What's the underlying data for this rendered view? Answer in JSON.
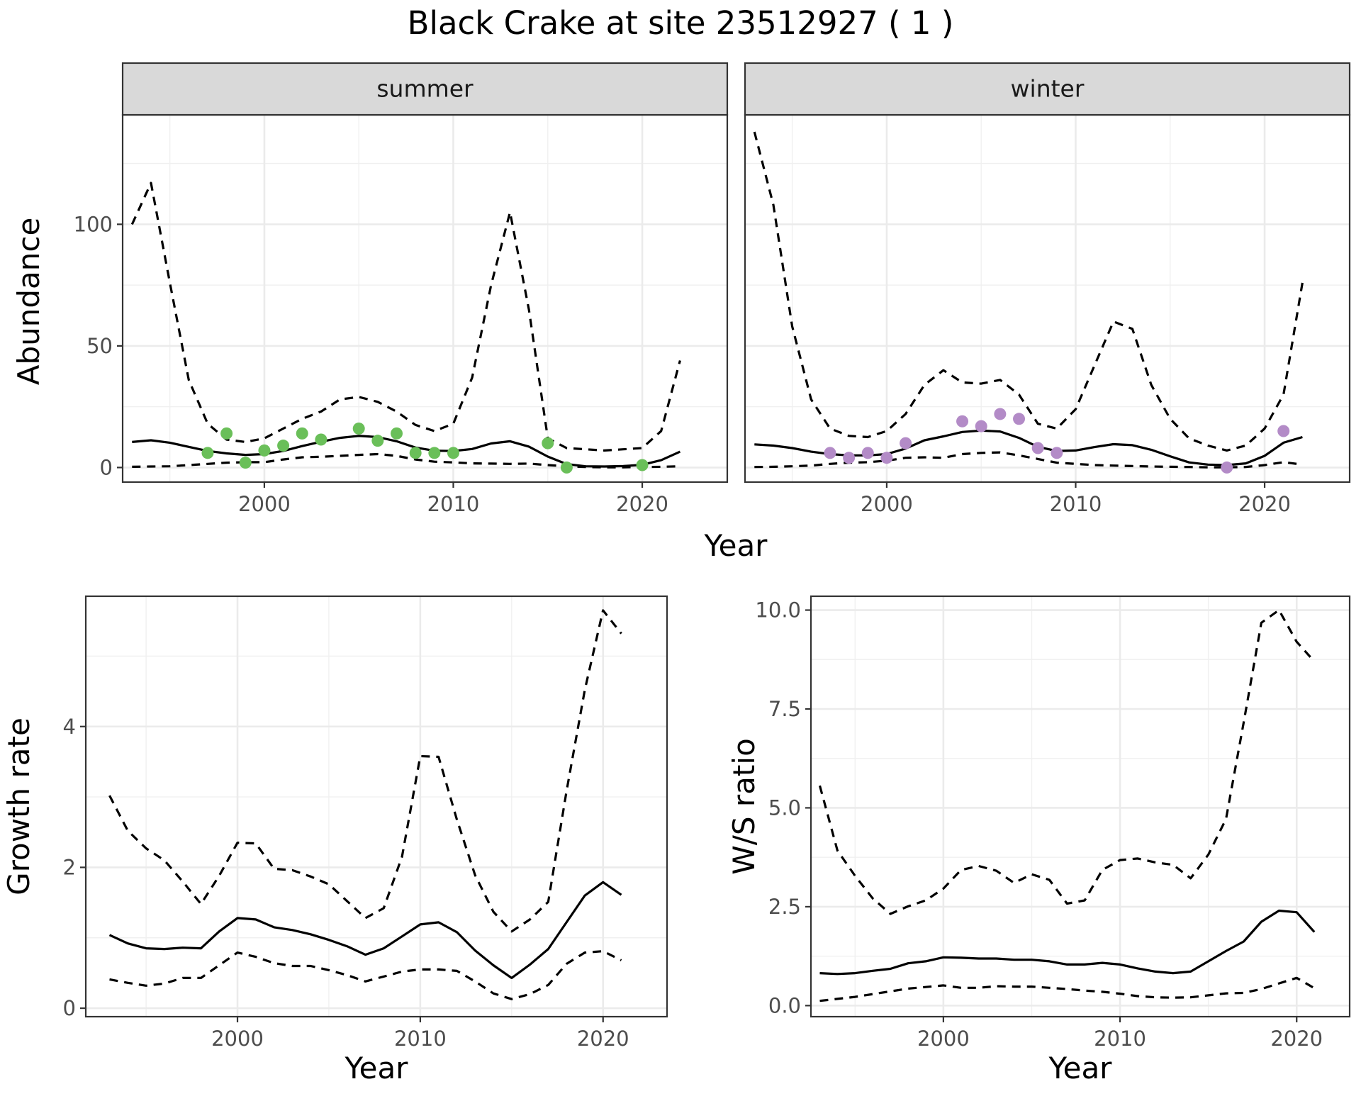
{
  "figure": {
    "title": "Black Crake at site 23512927 ( 1 )"
  },
  "chart_data": [
    {
      "type": "line",
      "facet": "summer",
      "xlabel": "Year",
      "ylabel": "Abundance",
      "xlim": [
        1992.5,
        2024.5
      ],
      "ylim": [
        -6,
        145
      ],
      "x_ticks": [
        2000,
        2010,
        2020
      ],
      "y_ticks": [
        0,
        50,
        100
      ],
      "grid": true,
      "points_color": "#6abf59",
      "x": [
        1993,
        1994,
        1995,
        1996,
        1997,
        1998,
        1999,
        2000,
        2001,
        2002,
        2003,
        2004,
        2005,
        2006,
        2007,
        2008,
        2009,
        2010,
        2011,
        2012,
        2013,
        2014,
        2015,
        2016,
        2017,
        2018,
        2019,
        2020,
        2021,
        2022
      ],
      "series": [
        {
          "style": "solid",
          "values": [
            10.5,
            11.2,
            10.2,
            8.5,
            6.8,
            5.8,
            5.2,
            5.5,
            6.8,
            8.8,
            10.6,
            12.2,
            13.0,
            12.5,
            10.8,
            8.2,
            6.9,
            6.8,
            7.6,
            9.9,
            10.8,
            8.6,
            4.5,
            1.4,
            0.5,
            0.4,
            0.6,
            1.1,
            3.0,
            6.5
          ]
        },
        {
          "style": "dashed",
          "values": [
            100,
            117,
            76,
            36,
            18,
            11.5,
            10.5,
            12,
            16,
            20,
            23,
            28,
            29,
            27,
            23,
            17.5,
            15,
            18,
            37,
            75,
            105,
            65,
            12,
            8,
            7.5,
            7,
            7.5,
            8,
            15,
            44
          ]
        },
        {
          "style": "dashed",
          "values": [
            0.3,
            0.4,
            0.5,
            1.0,
            1.5,
            2.0,
            2.2,
            2.2,
            3.3,
            4.2,
            4.4,
            4.8,
            5.2,
            5.5,
            4.8,
            3.3,
            2.4,
            2.1,
            1.7,
            1.6,
            1.5,
            1.6,
            1.0,
            0.5,
            0.2,
            0.1,
            0.1,
            0.2,
            0.3,
            0.5
          ]
        }
      ],
      "points": [
        {
          "x": 1997,
          "y": 6
        },
        {
          "x": 1998,
          "y": 14
        },
        {
          "x": 1999,
          "y": 2
        },
        {
          "x": 2000,
          "y": 7
        },
        {
          "x": 2001,
          "y": 9
        },
        {
          "x": 2002,
          "y": 14
        },
        {
          "x": 2003,
          "y": 11.5
        },
        {
          "x": 2005,
          "y": 16
        },
        {
          "x": 2006,
          "y": 11
        },
        {
          "x": 2007,
          "y": 14
        },
        {
          "x": 2008,
          "y": 6
        },
        {
          "x": 2009,
          "y": 6
        },
        {
          "x": 2010,
          "y": 6
        },
        {
          "x": 2015,
          "y": 10
        },
        {
          "x": 2016,
          "y": 0
        },
        {
          "x": 2020,
          "y": 1
        }
      ]
    },
    {
      "type": "line",
      "facet": "winter",
      "xlabel": "Year",
      "ylabel": "Abundance",
      "xlim": [
        1992.5,
        2024.5
      ],
      "ylim": [
        -6,
        145
      ],
      "x_ticks": [
        2000,
        2010,
        2020
      ],
      "y_ticks": [
        0,
        50,
        100
      ],
      "grid": true,
      "points_color": "#b38bc7",
      "x": [
        1993,
        1994,
        1995,
        1996,
        1997,
        1998,
        1999,
        2000,
        2001,
        2002,
        2003,
        2004,
        2005,
        2006,
        2007,
        2008,
        2009,
        2010,
        2011,
        2012,
        2013,
        2014,
        2015,
        2016,
        2017,
        2018,
        2019,
        2020,
        2021,
        2022
      ],
      "series": [
        {
          "style": "solid",
          "values": [
            9.5,
            9.0,
            8.0,
            6.5,
            5.5,
            5.0,
            5.0,
            5.5,
            7.8,
            11.2,
            12.8,
            14.6,
            15.2,
            14.8,
            12.2,
            8.5,
            6.8,
            7.0,
            8.4,
            9.6,
            9.2,
            7.3,
            4.6,
            2.1,
            1.2,
            1.0,
            1.7,
            4.8,
            10.2,
            12.5
          ]
        },
        {
          "style": "dashed",
          "values": [
            138,
            108,
            58,
            28,
            16,
            13,
            12.5,
            15,
            22,
            34,
            40,
            35,
            34.5,
            36,
            30,
            18,
            16,
            24,
            42,
            60,
            57,
            34,
            20,
            12,
            9,
            7,
            9,
            16,
            30,
            76
          ]
        },
        {
          "style": "dashed",
          "values": [
            0.2,
            0.3,
            0.5,
            0.8,
            1.5,
            2.0,
            2.2,
            2.8,
            4.0,
            4.2,
            4.0,
            5.5,
            6.0,
            6.2,
            5.0,
            3.5,
            2.0,
            1.5,
            1.0,
            0.8,
            0.6,
            0.4,
            0.3,
            0.2,
            0.1,
            0.1,
            0.2,
            1.0,
            2.2,
            1.2
          ]
        }
      ],
      "points": [
        {
          "x": 1997,
          "y": 6
        },
        {
          "x": 1998,
          "y": 4
        },
        {
          "x": 1999,
          "y": 6
        },
        {
          "x": 2000,
          "y": 4
        },
        {
          "x": 2001,
          "y": 10
        },
        {
          "x": 2004,
          "y": 19
        },
        {
          "x": 2005,
          "y": 17
        },
        {
          "x": 2006,
          "y": 22
        },
        {
          "x": 2007,
          "y": 20
        },
        {
          "x": 2008,
          "y": 8
        },
        {
          "x": 2009,
          "y": 6
        },
        {
          "x": 2018,
          "y": 0
        },
        {
          "x": 2021,
          "y": 15
        }
      ]
    },
    {
      "type": "line",
      "xlabel": "Year",
      "ylabel": "Growth rate",
      "xlim": [
        1991.7,
        2023.5
      ],
      "ylim": [
        -0.12,
        5.85
      ],
      "x_ticks": [
        2000,
        2010,
        2020
      ],
      "y_ticks": [
        0,
        2,
        4
      ],
      "grid": true,
      "x": [
        1993,
        1994,
        1995,
        1996,
        1997,
        1998,
        1999,
        2000,
        2001,
        2002,
        2003,
        2004,
        2005,
        2006,
        2007,
        2008,
        2009,
        2010,
        2011,
        2012,
        2013,
        2014,
        2015,
        2016,
        2017,
        2018,
        2019,
        2020,
        2021
      ],
      "series": [
        {
          "style": "solid",
          "values": [
            1.04,
            0.92,
            0.85,
            0.84,
            0.86,
            0.85,
            1.09,
            1.28,
            1.26,
            1.15,
            1.11,
            1.05,
            0.97,
            0.88,
            0.76,
            0.85,
            1.02,
            1.19,
            1.22,
            1.08,
            0.82,
            0.61,
            0.43,
            0.62,
            0.84,
            1.22,
            1.6,
            1.79,
            1.61
          ]
        },
        {
          "style": "dashed",
          "values": [
            3.02,
            2.52,
            2.27,
            2.1,
            1.8,
            1.48,
            1.88,
            2.35,
            2.34,
            1.98,
            1.96,
            1.87,
            1.76,
            1.52,
            1.28,
            1.42,
            2.15,
            3.58,
            3.57,
            2.68,
            1.89,
            1.37,
            1.09,
            1.26,
            1.51,
            3.08,
            4.52,
            5.65,
            5.32
          ]
        },
        {
          "style": "dashed",
          "values": [
            0.41,
            0.36,
            0.32,
            0.35,
            0.43,
            0.43,
            0.61,
            0.79,
            0.73,
            0.64,
            0.6,
            0.6,
            0.54,
            0.47,
            0.38,
            0.45,
            0.52,
            0.55,
            0.55,
            0.53,
            0.38,
            0.21,
            0.13,
            0.2,
            0.33,
            0.63,
            0.79,
            0.81,
            0.68
          ]
        }
      ]
    },
    {
      "type": "line",
      "xlabel": "Year",
      "ylabel": "W/S ratio",
      "xlim": [
        1992.5,
        2023.0
      ],
      "ylim": [
        -0.28,
        10.35
      ],
      "x_ticks": [
        2000,
        2010,
        2020
      ],
      "y_ticks": [
        "0.0",
        "2.5",
        "5.0",
        "7.5",
        "10.0"
      ],
      "grid": true,
      "x": [
        1993,
        1994,
        1995,
        1996,
        1997,
        1998,
        1999,
        2000,
        2001,
        2002,
        2003,
        2004,
        2005,
        2006,
        2007,
        2008,
        2009,
        2010,
        2011,
        2012,
        2013,
        2014,
        2015,
        2016,
        2017,
        2018,
        2019,
        2020,
        2021
      ],
      "series": [
        {
          "style": "solid",
          "values": [
            0.82,
            0.8,
            0.82,
            0.88,
            0.93,
            1.07,
            1.12,
            1.22,
            1.21,
            1.19,
            1.19,
            1.16,
            1.16,
            1.12,
            1.04,
            1.04,
            1.08,
            1.04,
            0.94,
            0.86,
            0.82,
            0.86,
            1.12,
            1.38,
            1.62,
            2.12,
            2.4,
            2.36,
            1.86
          ]
        },
        {
          "style": "dashed",
          "values": [
            5.56,
            3.92,
            3.28,
            2.71,
            2.32,
            2.51,
            2.66,
            2.96,
            3.43,
            3.53,
            3.41,
            3.1,
            3.32,
            3.18,
            2.58,
            2.66,
            3.43,
            3.68,
            3.72,
            3.62,
            3.56,
            3.22,
            3.82,
            4.72,
            7.16,
            9.68,
            10.0,
            9.2,
            8.7
          ]
        },
        {
          "style": "dashed",
          "values": [
            0.12,
            0.17,
            0.22,
            0.29,
            0.36,
            0.43,
            0.47,
            0.51,
            0.45,
            0.45,
            0.49,
            0.48,
            0.48,
            0.45,
            0.42,
            0.38,
            0.35,
            0.3,
            0.24,
            0.21,
            0.2,
            0.21,
            0.26,
            0.31,
            0.32,
            0.42,
            0.56,
            0.7,
            0.44
          ]
        }
      ]
    }
  ]
}
